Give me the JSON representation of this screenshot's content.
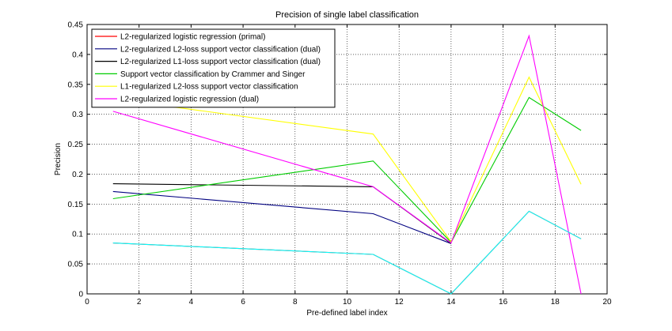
{
  "chart_data": {
    "type": "line",
    "title": "Precision of single label classification",
    "xlabel": "Pre-defined label index",
    "ylabel": "Precision",
    "xlim": [
      0,
      20
    ],
    "ylim": [
      0,
      0.45
    ],
    "xticks": [
      0,
      2,
      4,
      6,
      8,
      10,
      12,
      14,
      16,
      18,
      20
    ],
    "yticks": [
      0,
      0.05,
      0.1,
      0.15,
      0.2,
      0.25,
      0.3,
      0.35,
      0.4,
      0.45
    ],
    "xtick_labels": [
      "0",
      "2",
      "4",
      "6",
      "8",
      "10",
      "12",
      "14",
      "16",
      "18",
      "20"
    ],
    "ytick_labels": [
      "0",
      "0.05",
      "0.1",
      "0.15",
      "0.2",
      "0.25",
      "0.3",
      "0.35",
      "0.4",
      "0.45"
    ],
    "grid": true,
    "legend_position": "top-left",
    "series": [
      {
        "name": "L2-regularized logistic regression (primal)",
        "color": "#ff0000",
        "x": [
          1,
          11,
          14,
          17,
          19
        ],
        "y": [
          0.085,
          0.066,
          0.0,
          0.138,
          0.092
        ]
      },
      {
        "name": "L2-regularized L2-loss support vector classification (dual)",
        "color": "#000080",
        "x": [
          1,
          11,
          14,
          17,
          19
        ],
        "y": [
          0.171,
          0.134,
          0.084,
          null,
          null
        ]
      },
      {
        "name": "L2-regularized L1-loss support vector classification (dual)",
        "color": "#000000",
        "x": [
          1,
          11,
          14,
          17,
          19
        ],
        "y": [
          0.184,
          0.179,
          0.084,
          null,
          null
        ]
      },
      {
        "name": "Support vector classification by Crammer and Singer",
        "color": "#00cc00",
        "x": [
          1,
          11,
          14,
          17,
          19
        ],
        "y": [
          0.159,
          0.222,
          0.086,
          0.328,
          0.273
        ]
      },
      {
        "name": "L1-regularized L2-loss support vector classification",
        "color": "#ffff00",
        "x": [
          1,
          11,
          14,
          17,
          19
        ],
        "y": [
          0.326,
          0.267,
          0.087,
          0.362,
          0.183
        ]
      },
      {
        "name": "L2-regularized logistic regression (dual)",
        "color": "#ff00ff",
        "x": [
          1,
          11,
          14,
          17,
          19
        ],
        "y": [
          0.305,
          0.179,
          0.085,
          0.431,
          0.0
        ]
      },
      {
        "name": "",
        "color": "#00ffff",
        "x": [
          1,
          11,
          14,
          17,
          19
        ],
        "y": [
          0.085,
          0.066,
          0.0,
          0.138,
          0.092
        ]
      }
    ]
  }
}
